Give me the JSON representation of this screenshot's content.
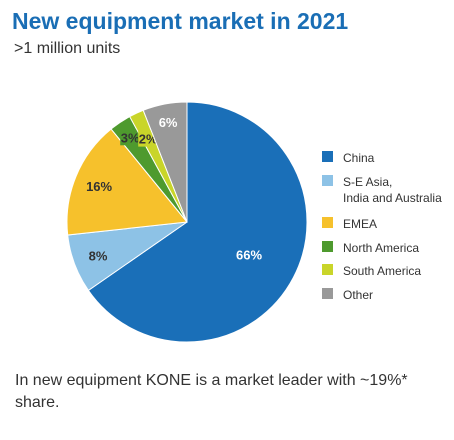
{
  "header": {
    "title": "New equipment market in 2021",
    "subtitle": ">1 million units"
  },
  "chart_data": {
    "type": "pie",
    "title": "New equipment market in 2021",
    "subtitle": ">1 million units",
    "unit": "%",
    "slices": [
      {
        "name": "China",
        "value": 66,
        "label": "66%",
        "color": "#1a6fb8"
      },
      {
        "name": "S-E Asia,\nIndia and Australia",
        "value": 8,
        "label": "8%",
        "color": "#8dc2e6"
      },
      {
        "name": "EMEA",
        "value": 16,
        "label": "16%",
        "color": "#f6c12c"
      },
      {
        "name": "North America",
        "value": 3,
        "label": "3%",
        "color": "#4e9a2e"
      },
      {
        "name": "South America",
        "value": 2,
        "label": "2%",
        "color": "#c9d52a"
      },
      {
        "name": "Other",
        "value": 6,
        "label": "6%",
        "color": "#999999"
      }
    ],
    "legend_position": "right"
  },
  "footnote": {
    "text": "In new equipment KONE is a market leader with ~19%* share."
  }
}
